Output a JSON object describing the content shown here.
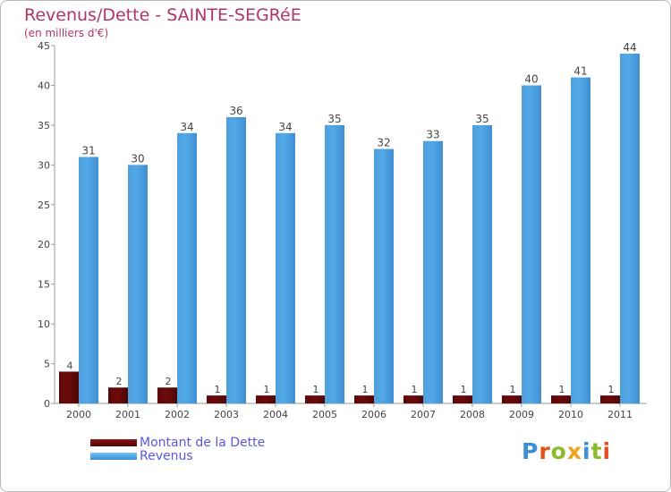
{
  "header": {
    "title": "Revenus/Dette - SAINTE-SEGRéE",
    "subtitle": "(en milliers d'€)"
  },
  "logo": {
    "text": "Proxiti",
    "letter_colors": [
      "#3a8fd8",
      "#e2501c",
      "#8bbb2a",
      "#f0a21c",
      "#3a8fd8",
      "#8bbb2a",
      "#e2501c"
    ]
  },
  "colors": {
    "title": "#b1346a",
    "dette": "#6e0b0b",
    "revenus": "#52a8e6",
    "axis": "#9a9a9a",
    "legend_text": "#5858e0"
  },
  "chart_data": {
    "type": "bar",
    "title": "Revenus/Dette - SAINTE-SEGRéE",
    "ylabel": "(en milliers d'€)",
    "xlabel": "",
    "categories": [
      "2000",
      "2001",
      "2002",
      "2003",
      "2004",
      "2005",
      "2006",
      "2007",
      "2008",
      "2009",
      "2010",
      "2011"
    ],
    "series": [
      {
        "name": "Montant de la Dette",
        "values": [
          4,
          2,
          2,
          1,
          1,
          1,
          1,
          1,
          1,
          1,
          1,
          1
        ]
      },
      {
        "name": "Revenus",
        "values": [
          31,
          30,
          34,
          36,
          34,
          35,
          32,
          33,
          35,
          40,
          41,
          44
        ]
      }
    ],
    "ylim": [
      0,
      45
    ],
    "yticks": [
      0,
      5,
      10,
      15,
      20,
      25,
      30,
      35,
      40,
      45
    ],
    "grid": false,
    "legend": "bottom-left"
  }
}
